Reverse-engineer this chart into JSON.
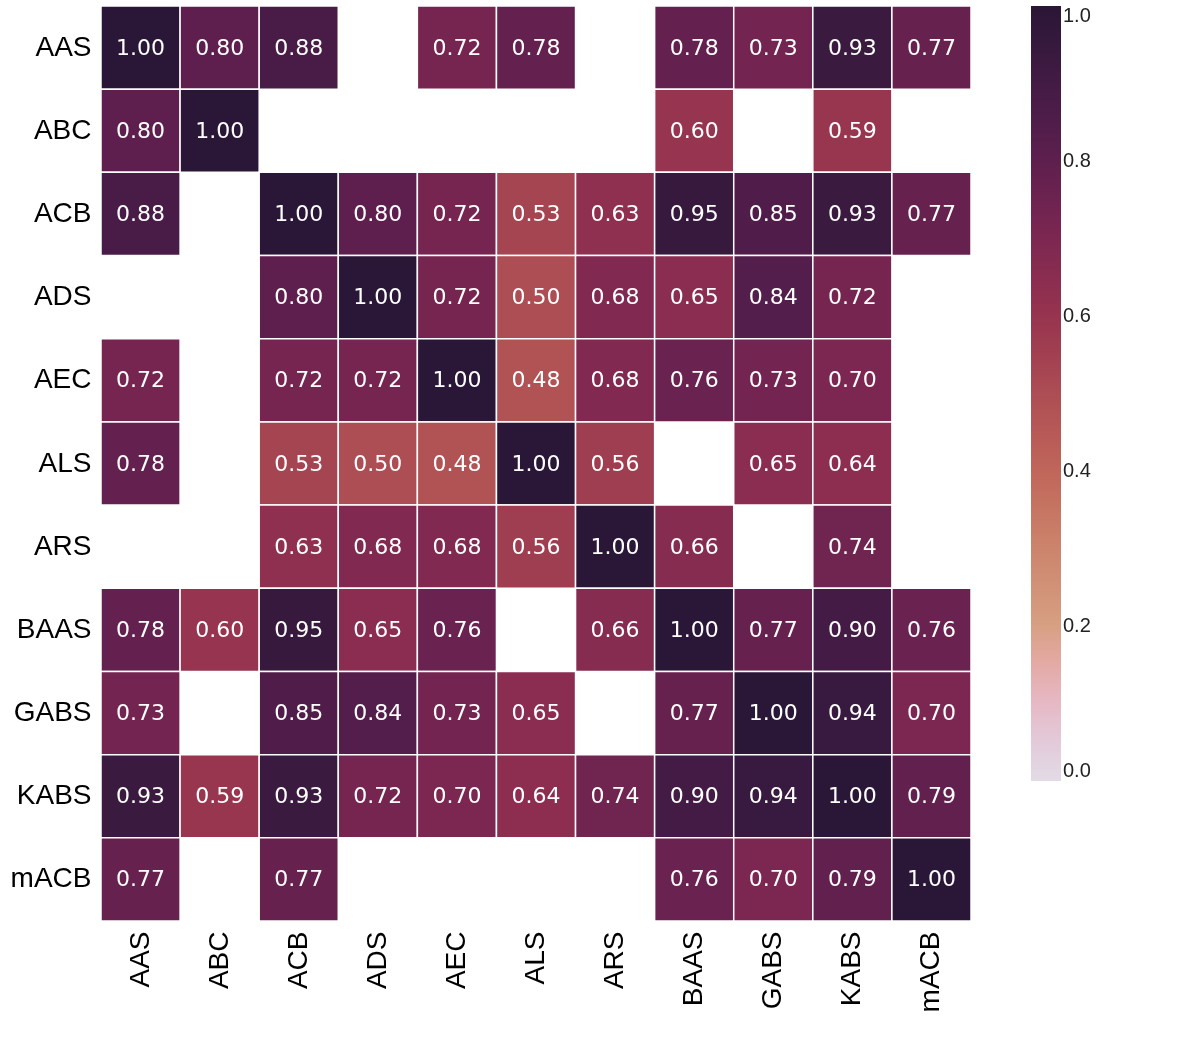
{
  "chart_data": {
    "type": "heatmap",
    "categories": [
      "AAS",
      "ABC",
      "ACB",
      "ADS",
      "AEC",
      "ALS",
      "ARS",
      "BAAS",
      "GABS",
      "KABS",
      "mACB"
    ],
    "y_categories": [
      "AAS",
      "ABC",
      "ACB",
      "ADS",
      "AEC",
      "ALS",
      "ARS",
      "BAAS",
      "GABS",
      "KABS",
      "mACB"
    ],
    "cells": [
      [
        1.0,
        0.8,
        0.88,
        null,
        0.72,
        0.78,
        null,
        0.78,
        0.73,
        0.93,
        0.77
      ],
      [
        0.8,
        1.0,
        null,
        null,
        null,
        null,
        null,
        0.6,
        null,
        0.59,
        null
      ],
      [
        0.88,
        null,
        1.0,
        0.8,
        0.72,
        0.53,
        0.63,
        0.95,
        0.85,
        0.93,
        0.77
      ],
      [
        null,
        null,
        0.8,
        1.0,
        0.72,
        0.5,
        0.68,
        0.65,
        0.84,
        0.72,
        null
      ],
      [
        0.72,
        null,
        0.72,
        0.72,
        1.0,
        0.48,
        0.68,
        0.76,
        0.73,
        0.7,
        null
      ],
      [
        0.78,
        null,
        0.53,
        0.5,
        0.48,
        1.0,
        0.56,
        null,
        0.65,
        0.64,
        null
      ],
      [
        null,
        null,
        0.63,
        0.68,
        0.68,
        0.56,
        1.0,
        0.66,
        null,
        0.74,
        null
      ],
      [
        0.78,
        0.6,
        0.95,
        0.65,
        0.76,
        null,
        0.66,
        1.0,
        0.77,
        0.9,
        0.76
      ],
      [
        0.73,
        null,
        0.85,
        0.84,
        0.73,
        0.65,
        null,
        0.77,
        1.0,
        0.94,
        0.7
      ],
      [
        0.93,
        0.59,
        0.93,
        0.72,
        0.7,
        0.64,
        0.74,
        0.9,
        0.94,
        1.0,
        0.79
      ],
      [
        0.77,
        null,
        0.77,
        null,
        null,
        null,
        null,
        0.76,
        0.7,
        0.79,
        1.0
      ]
    ],
    "cell_labels": [
      [
        "1.00",
        "0.80",
        "0.88",
        null,
        "0.72",
        "0.78",
        null,
        "0.78",
        "0.73",
        "0.93",
        "0.77"
      ],
      [
        "0.80",
        "1.00",
        null,
        null,
        null,
        null,
        null,
        "0.60",
        null,
        "0.59",
        null
      ],
      [
        "0.88",
        null,
        "1.00",
        "0.80",
        "0.72",
        "0.53",
        "0.63",
        "0.95",
        "0.85",
        "0.93",
        "0.77"
      ],
      [
        null,
        null,
        "0.80",
        "1.00",
        "0.72",
        "0.50",
        "0.68",
        "0.65",
        "0.84",
        "0.72",
        null
      ],
      [
        "0.72",
        null,
        "0.72",
        "0.72",
        "1.00",
        "0.48",
        "0.68",
        "0.76",
        "0.73",
        "0.70",
        null
      ],
      [
        "0.78",
        null,
        "0.53",
        "0.50",
        "0.48",
        "1.00",
        "0.56",
        null,
        "0.65",
        "0.64",
        null
      ],
      [
        null,
        null,
        "0.63",
        "0.68",
        "0.68",
        "0.56",
        "1.00",
        "0.66",
        null,
        "0.74",
        null
      ],
      [
        "0.78",
        "0.60",
        "0.95",
        "0.65",
        "0.76",
        null,
        "0.66",
        "1.00",
        "0.77",
        "0.90",
        "0.76"
      ],
      [
        "0.73",
        null,
        "0.85",
        "0.84",
        "0.73",
        "0.65",
        null,
        "0.77",
        "1.00",
        "0.94",
        "0.70"
      ],
      [
        "0.93",
        "0.59",
        "0.93",
        "0.72",
        "0.70",
        "0.64",
        "0.74",
        "0.90",
        "0.94",
        "1.00",
        "0.79"
      ],
      [
        "0.77",
        null,
        "0.77",
        null,
        null,
        null,
        null,
        "0.76",
        "0.70",
        "0.79",
        "1.00"
      ]
    ],
    "clim": [
      0,
      1
    ],
    "cticks": [
      {
        "value": 0,
        "label": "0.0"
      },
      {
        "value": 0.2,
        "label": "0.2"
      },
      {
        "value": 0.4,
        "label": "0.4"
      },
      {
        "value": 0.6,
        "label": "0.6"
      },
      {
        "value": 0.8,
        "label": "0.8"
      },
      {
        "value": 1,
        "label": "1.0"
      }
    ]
  }
}
